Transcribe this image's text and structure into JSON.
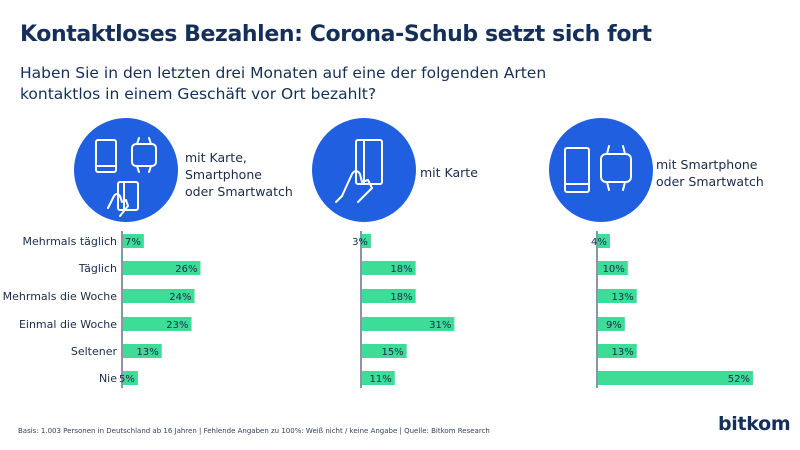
{
  "title": "Kontaktloses Bezahlen: Corona-Schub setzt sich fort",
  "subtitle": "Haben Sie in den letzten drei Monaten auf eine der folgenden Arten kontaktlos in einem Geschäft vor Ort bezahlt?",
  "panels": [
    {
      "label": "mit Karte,\nSmartphone\noder Smartwatch",
      "icon": "card-phone-watch-icon"
    },
    {
      "label": "mit Karte",
      "icon": "card-hand-icon"
    },
    {
      "label": "mit Smartphone\noder Smartwatch",
      "icon": "phone-watch-icon"
    }
  ],
  "colors": {
    "bar": "#3ddc97",
    "icon_bg": "#1f5fe0",
    "title": "#14305a"
  },
  "chart_data": {
    "type": "bar",
    "orientation": "horizontal",
    "categories": [
      "Mehrmals täglich",
      "Täglich",
      "Mehrmals die Woche",
      "Einmal die Woche",
      "Seltener",
      "Nie"
    ],
    "value_suffix": "%",
    "series": [
      {
        "name": "mit Karte, Smartphone oder Smartwatch",
        "values": [
          7,
          26,
          24,
          23,
          13,
          5
        ]
      },
      {
        "name": "mit Karte",
        "values": [
          3,
          18,
          18,
          31,
          15,
          11
        ]
      },
      {
        "name": "mit Smartphone oder Smartwatch",
        "values": [
          4,
          10,
          13,
          9,
          13,
          52
        ]
      }
    ]
  },
  "footnote": "Basis: 1.003 Personen in Deutschland ab 16 Jahren | Fehlende Angaben zu 100%: Weiß nicht / keine Angabe | Quelle: Bitkom Research",
  "logo": "bitkom"
}
